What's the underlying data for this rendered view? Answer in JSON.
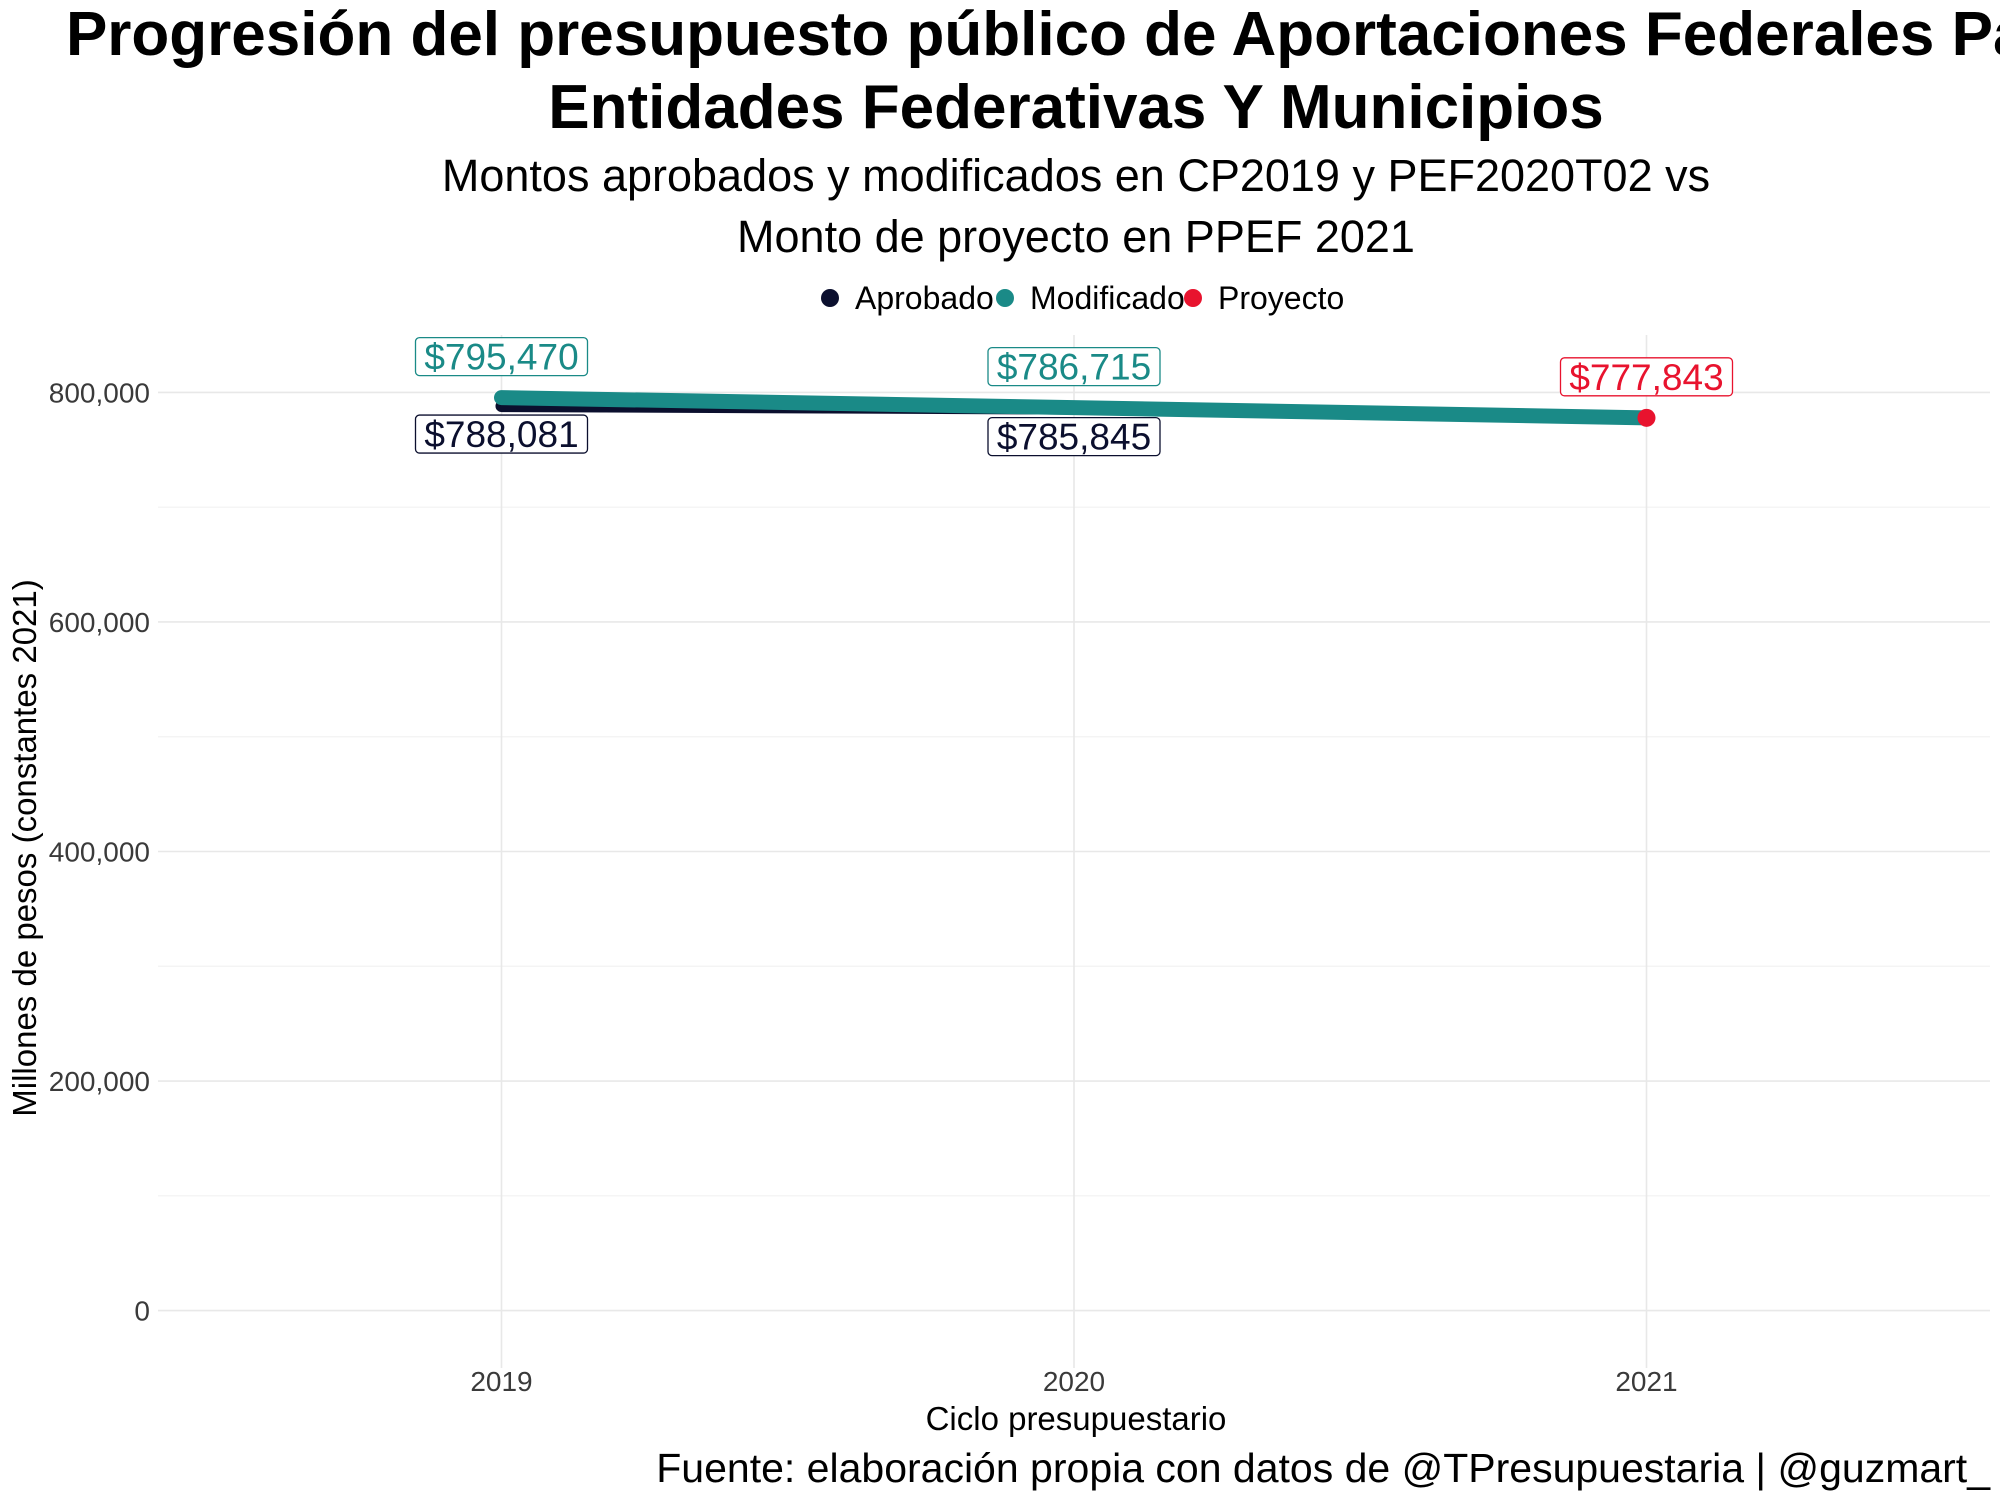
{
  "chart_data": {
    "type": "line",
    "title_lines": [
      "Progresión del presupuesto público de Aportaciones Federales Para",
      "Entidades Federativas Y Municipios"
    ],
    "subtitle_lines": [
      "Montos aprobados y modificados en CP2019 y PEF2020T02 vs",
      "Monto de proyecto en PPEF 2021"
    ],
    "xlabel": "Ciclo presupuestario",
    "ylabel": "Millones de pesos (constantes 2021)",
    "caption": "Fuente: elaboración propia con datos de @TPresupuestaria | @guzmart_",
    "x": [
      2019,
      2020,
      2021
    ],
    "x_tick_labels": [
      "2019",
      "2020",
      "2021"
    ],
    "xlim": [
      2018.4,
      2021.6
    ],
    "ylim": [
      -50000,
      850000
    ],
    "y_ticks": [
      0,
      200000,
      400000,
      600000,
      800000
    ],
    "y_tick_labels": [
      "0",
      "200,000",
      "400,000",
      "600,000",
      "800,000"
    ],
    "grid": true,
    "legend_position": "top",
    "series": [
      {
        "name": "Aprobado",
        "color": "#0b0f2e",
        "points": [
          {
            "x": 2019,
            "y": 788081,
            "label": "$788,081",
            "label_position": "below"
          },
          {
            "x": 2020,
            "y": 785845,
            "label": "$785,845",
            "label_position": "below"
          }
        ]
      },
      {
        "name": "Modificado",
        "color": "#1a8a87",
        "points": [
          {
            "x": 2019,
            "y": 795470,
            "label": "$795,470",
            "label_position": "above"
          },
          {
            "x": 2020,
            "y": 786715,
            "label": "$786,715",
            "label_position": "above"
          },
          {
            "x": 2021,
            "y": 777843
          }
        ]
      },
      {
        "name": "Proyecto",
        "color": "#e8132e",
        "points": [
          {
            "x": 2021,
            "y": 777843,
            "label": "$777,843",
            "label_position": "above"
          }
        ]
      }
    ]
  }
}
